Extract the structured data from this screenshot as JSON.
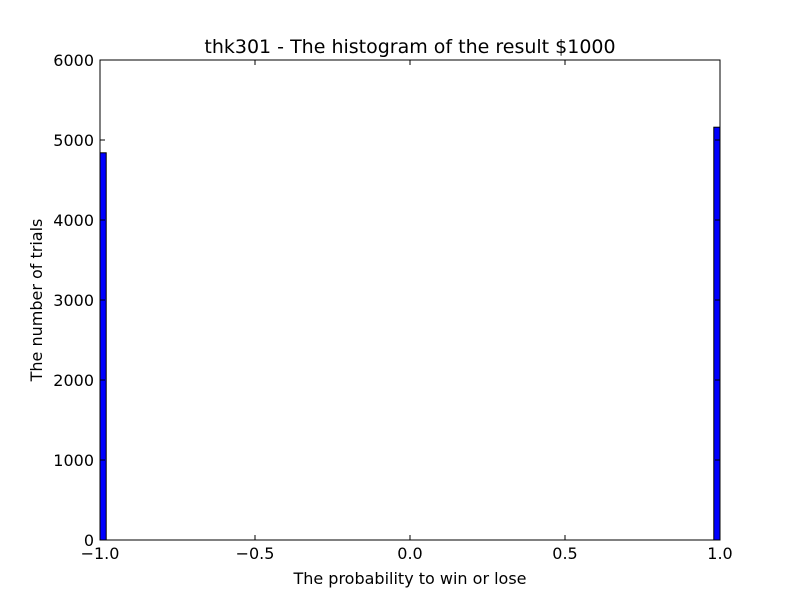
{
  "chart_data": {
    "type": "bar",
    "title": "thk301 - The histogram of the result $1000",
    "xlabel": "The probability to win or lose",
    "ylabel": "The number of trials",
    "xlim": [
      -1.0,
      1.0
    ],
    "ylim": [
      0,
      6000
    ],
    "x_ticks": [
      {
        "value": -1.0,
        "label": "−1.0"
      },
      {
        "value": -0.5,
        "label": "−0.5"
      },
      {
        "value": 0.0,
        "label": "0.0"
      },
      {
        "value": 0.5,
        "label": "0.5"
      },
      {
        "value": 1.0,
        "label": "1.0"
      }
    ],
    "y_ticks": [
      {
        "value": 0,
        "label": "0"
      },
      {
        "value": 1000,
        "label": "1000"
      },
      {
        "value": 2000,
        "label": "2000"
      },
      {
        "value": 3000,
        "label": "3000"
      },
      {
        "value": 4000,
        "label": "4000"
      },
      {
        "value": 5000,
        "label": "5000"
      },
      {
        "value": 6000,
        "label": "6000"
      }
    ],
    "bins": [
      {
        "x_start": -1.0,
        "x_end": -0.98,
        "count": 4840
      },
      {
        "x_start": 0.98,
        "x_end": 1.0,
        "count": 5160
      }
    ],
    "grid": false,
    "bar_color": "#0000ff"
  }
}
